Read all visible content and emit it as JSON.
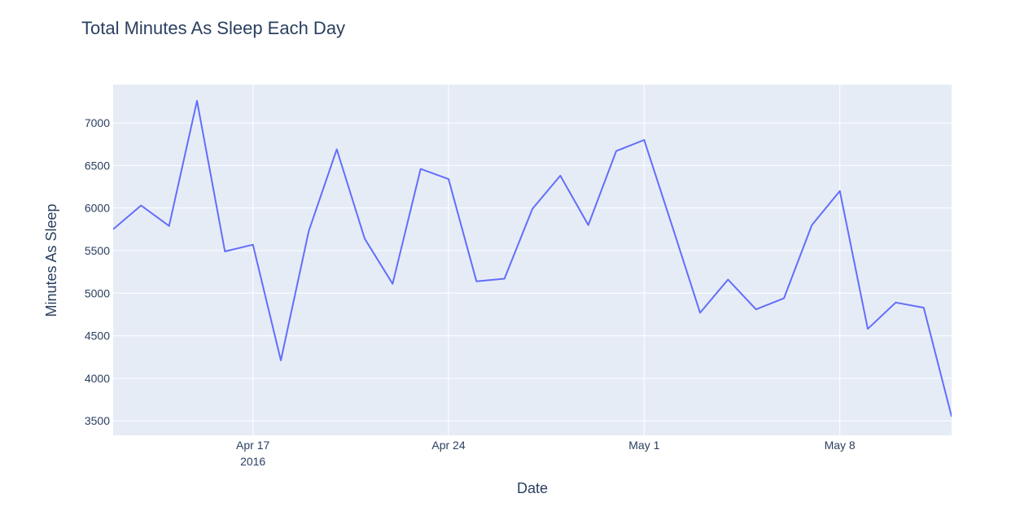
{
  "chart_data": {
    "type": "line",
    "title": "Total Minutes As Sleep Each Day",
    "xlabel": "Date",
    "ylabel": "Minutes As Sleep",
    "x_start": "2016-04-12",
    "x_end": "2016-05-12",
    "ylim": [
      3330,
      7450
    ],
    "y_ticks": [
      3500,
      4000,
      4500,
      5000,
      5500,
      6000,
      6500,
      7000
    ],
    "x_ticks": [
      {
        "date": "2016-04-17",
        "label": "Apr 17",
        "sublabel": "2016"
      },
      {
        "date": "2016-04-24",
        "label": "Apr 24",
        "sublabel": ""
      },
      {
        "date": "2016-05-01",
        "label": "May 1",
        "sublabel": ""
      },
      {
        "date": "2016-05-08",
        "label": "May 8",
        "sublabel": ""
      }
    ],
    "grid": true,
    "line_color": "#636efa",
    "x": [
      "2016-04-12",
      "2016-04-13",
      "2016-04-14",
      "2016-04-15",
      "2016-04-16",
      "2016-04-17",
      "2016-04-18",
      "2016-04-19",
      "2016-04-20",
      "2016-04-21",
      "2016-04-22",
      "2016-04-23",
      "2016-04-24",
      "2016-04-25",
      "2016-04-26",
      "2016-04-27",
      "2016-04-28",
      "2016-04-29",
      "2016-04-30",
      "2016-05-01",
      "2016-05-02",
      "2016-05-03",
      "2016-05-04",
      "2016-05-05",
      "2016-05-06",
      "2016-05-07",
      "2016-05-08",
      "2016-05-09",
      "2016-05-10",
      "2016-05-11",
      "2016-05-12"
    ],
    "values": [
      5750,
      6030,
      5790,
      7260,
      5490,
      5570,
      4210,
      5730,
      6690,
      5640,
      5110,
      6460,
      6340,
      5140,
      5170,
      5990,
      6380,
      5800,
      6670,
      6800,
      5790,
      4770,
      5160,
      4810,
      4940,
      5800,
      6200,
      4580,
      4890,
      4830,
      3550
    ]
  }
}
